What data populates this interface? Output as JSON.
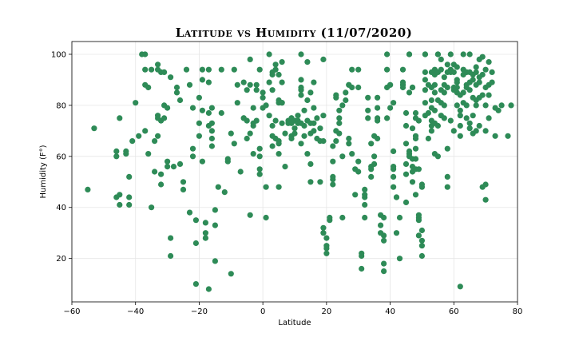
{
  "chart_data": {
    "type": "scatter",
    "title": "Latitude vs Humidity (11/07/2020)",
    "xlabel": "Latitude",
    "ylabel": "Humidity (F°)",
    "xlim": [
      -60,
      80
    ],
    "ylim": [
      3,
      105
    ],
    "xticks": [
      -60,
      -40,
      -20,
      0,
      20,
      40,
      60,
      80
    ],
    "yticks": [
      20,
      40,
      60,
      80,
      100
    ],
    "grid": true,
    "marker_color": "#2e8b57",
    "points": [
      [
        -55,
        47
      ],
      [
        -53,
        71
      ],
      [
        -46,
        60
      ],
      [
        -46,
        62
      ],
      [
        -45,
        75
      ],
      [
        -46,
        44
      ],
      [
        -45,
        45
      ],
      [
        -45,
        41
      ],
      [
        -43,
        62
      ],
      [
        -43,
        61
      ],
      [
        -42,
        44
      ],
      [
        -42,
        41
      ],
      [
        -42,
        52
      ],
      [
        -41,
        66
      ],
      [
        -40,
        81
      ],
      [
        -39,
        68
      ],
      [
        -38,
        100
      ],
      [
        -37,
        100
      ],
      [
        -37,
        94
      ],
      [
        -37,
        70
      ],
      [
        -37,
        88
      ],
      [
        -36,
        87
      ],
      [
        -36,
        61
      ],
      [
        -35,
        40
      ],
      [
        -35,
        94
      ],
      [
        -34,
        66
      ],
      [
        -34,
        54
      ],
      [
        -33,
        94
      ],
      [
        -33,
        96
      ],
      [
        -33,
        76
      ],
      [
        -33,
        75
      ],
      [
        -33,
        68
      ],
      [
        -32,
        74
      ],
      [
        -32,
        93
      ],
      [
        -32,
        53
      ],
      [
        -32,
        49
      ],
      [
        -31,
        93
      ],
      [
        -31,
        75
      ],
      [
        -31,
        80
      ],
      [
        -30,
        58
      ],
      [
        -30,
        56
      ],
      [
        -30,
        79
      ],
      [
        -29,
        91
      ],
      [
        -29,
        28
      ],
      [
        -29,
        21
      ],
      [
        -28,
        56
      ],
      [
        -27,
        85
      ],
      [
        -27,
        87
      ],
      [
        -26,
        82
      ],
      [
        -26,
        57
      ],
      [
        -25,
        50
      ],
      [
        -25,
        47
      ],
      [
        -24,
        94
      ],
      [
        -23,
        88
      ],
      [
        -23,
        38
      ],
      [
        -22,
        79
      ],
      [
        -22,
        63
      ],
      [
        -22,
        60
      ],
      [
        -21,
        10
      ],
      [
        -21,
        26
      ],
      [
        -21,
        35
      ],
      [
        -20,
        83
      ],
      [
        -20,
        73
      ],
      [
        -20,
        68
      ],
      [
        -19,
        94
      ],
      [
        -19,
        90
      ],
      [
        -19,
        78
      ],
      [
        -19,
        58
      ],
      [
        -18,
        30
      ],
      [
        -18,
        28
      ],
      [
        -18,
        34
      ],
      [
        -17,
        8
      ],
      [
        -17,
        94
      ],
      [
        -17,
        89
      ],
      [
        -17,
        72
      ],
      [
        -17,
        77
      ],
      [
        -16,
        70
      ],
      [
        -16,
        67
      ],
      [
        -16,
        64
      ],
      [
        -16,
        79
      ],
      [
        -16,
        73
      ],
      [
        -15,
        19
      ],
      [
        -15,
        33
      ],
      [
        -15,
        39
      ],
      [
        -14,
        48
      ],
      [
        -13,
        94
      ],
      [
        -13,
        77
      ],
      [
        -12,
        46
      ],
      [
        -11,
        58
      ],
      [
        -11,
        59
      ],
      [
        -10,
        14
      ],
      [
        -10,
        69
      ],
      [
        -9,
        65
      ],
      [
        -9,
        94
      ],
      [
        -8,
        88
      ],
      [
        -8,
        81
      ],
      [
        -7,
        54
      ],
      [
        -6,
        89
      ],
      [
        -6,
        75
      ],
      [
        -6,
        75
      ],
      [
        -5,
        67
      ],
      [
        -5,
        86
      ],
      [
        -5,
        74
      ],
      [
        -4,
        98
      ],
      [
        -4,
        88
      ],
      [
        -4,
        69
      ],
      [
        -4,
        37
      ],
      [
        -3,
        61
      ],
      [
        -3,
        72
      ],
      [
        -3,
        73
      ],
      [
        -3,
        79
      ],
      [
        -2,
        86
      ],
      [
        -2,
        88
      ],
      [
        -2,
        74
      ],
      [
        -1,
        94
      ],
      [
        -1,
        63
      ],
      [
        -1,
        60
      ],
      [
        -1,
        55
      ],
      [
        -1,
        53
      ],
      [
        0,
        85
      ],
      [
        0,
        83
      ],
      [
        0,
        79
      ],
      [
        1,
        80
      ],
      [
        1,
        48
      ],
      [
        1,
        36
      ],
      [
        2,
        100
      ],
      [
        2,
        89
      ],
      [
        2,
        76
      ],
      [
        3,
        92
      ],
      [
        3,
        93
      ],
      [
        3,
        86
      ],
      [
        3,
        72
      ],
      [
        3,
        64
      ],
      [
        3,
        68
      ],
      [
        4,
        96
      ],
      [
        4,
        94
      ],
      [
        4,
        74
      ],
      [
        4,
        67
      ],
      [
        5,
        81
      ],
      [
        5,
        82
      ],
      [
        5,
        92
      ],
      [
        5,
        61
      ],
      [
        5,
        65
      ],
      [
        5,
        66
      ],
      [
        5,
        48
      ],
      [
        6,
        97
      ],
      [
        6,
        89
      ],
      [
        6,
        81
      ],
      [
        6,
        81
      ],
      [
        6,
        73
      ],
      [
        7,
        69
      ],
      [
        7,
        56
      ],
      [
        8,
        73
      ],
      [
        8,
        74
      ],
      [
        9,
        75
      ],
      [
        9,
        68
      ],
      [
        9,
        73
      ],
      [
        9,
        67
      ],
      [
        9,
        75
      ],
      [
        10,
        69
      ],
      [
        10,
        74
      ],
      [
        10,
        71
      ],
      [
        11,
        76
      ],
      [
        11,
        73
      ],
      [
        11,
        74
      ],
      [
        12,
        86
      ],
      [
        12,
        84
      ],
      [
        12,
        100
      ],
      [
        12,
        87
      ],
      [
        12,
        90
      ],
      [
        12,
        73
      ],
      [
        12,
        65
      ],
      [
        13,
        78
      ],
      [
        13,
        72
      ],
      [
        13,
        68
      ],
      [
        14,
        97
      ],
      [
        14,
        74
      ],
      [
        14,
        82
      ],
      [
        14,
        61
      ],
      [
        15,
        57
      ],
      [
        15,
        50
      ],
      [
        15,
        69
      ],
      [
        15,
        85
      ],
      [
        15,
        73
      ],
      [
        16,
        89
      ],
      [
        16,
        79
      ],
      [
        16,
        70
      ],
      [
        16,
        73
      ],
      [
        17,
        67
      ],
      [
        17,
        75
      ],
      [
        18,
        71
      ],
      [
        18,
        66
      ],
      [
        18,
        50
      ],
      [
        19,
        98
      ],
      [
        19,
        76
      ],
      [
        19,
        66
      ],
      [
        19,
        32
      ],
      [
        19,
        30
      ],
      [
        20,
        28
      ],
      [
        20,
        25
      ],
      [
        20,
        24
      ],
      [
        20,
        22
      ],
      [
        21,
        35
      ],
      [
        21,
        36
      ],
      [
        22,
        51
      ],
      [
        22,
        52
      ],
      [
        22,
        49
      ],
      [
        22,
        58
      ],
      [
        22,
        64
      ],
      [
        23,
        66
      ],
      [
        23,
        83
      ],
      [
        23,
        84
      ],
      [
        23,
        70
      ],
      [
        24,
        75
      ],
      [
        24,
        69
      ],
      [
        24,
        73
      ],
      [
        24,
        78
      ],
      [
        25,
        80
      ],
      [
        25,
        60
      ],
      [
        25,
        36
      ],
      [
        26,
        82
      ],
      [
        26,
        85
      ],
      [
        27,
        88
      ],
      [
        27,
        88
      ],
      [
        27,
        65
      ],
      [
        27,
        67
      ],
      [
        28,
        94
      ],
      [
        28,
        87
      ],
      [
        28,
        61
      ],
      [
        29,
        45
      ],
      [
        29,
        55
      ],
      [
        30,
        94
      ],
      [
        30,
        87
      ],
      [
        30,
        58
      ],
      [
        30,
        54
      ],
      [
        31,
        16
      ],
      [
        31,
        21
      ],
      [
        31,
        22
      ],
      [
        32,
        41
      ],
      [
        32,
        44
      ],
      [
        32,
        45
      ],
      [
        32,
        47
      ],
      [
        32,
        36
      ],
      [
        33,
        75
      ],
      [
        33,
        78
      ],
      [
        33,
        83
      ],
      [
        34,
        55
      ],
      [
        34,
        52
      ],
      [
        34,
        56
      ],
      [
        34,
        65
      ],
      [
        35,
        68
      ],
      [
        35,
        60
      ],
      [
        35,
        57
      ],
      [
        36,
        83
      ],
      [
        36,
        75
      ],
      [
        36,
        79
      ],
      [
        36,
        74
      ],
      [
        36,
        67
      ],
      [
        37,
        30
      ],
      [
        37,
        33
      ],
      [
        37,
        37
      ],
      [
        38,
        36
      ],
      [
        38,
        29
      ],
      [
        38,
        27
      ],
      [
        38,
        18
      ],
      [
        38,
        15
      ],
      [
        39,
        75
      ],
      [
        39,
        87
      ],
      [
        39,
        94
      ],
      [
        39,
        100
      ],
      [
        40,
        88
      ],
      [
        40,
        88
      ],
      [
        40,
        79
      ],
      [
        41,
        81
      ],
      [
        41,
        62
      ],
      [
        41,
        55
      ],
      [
        41,
        48
      ],
      [
        41,
        52
      ],
      [
        41,
        56
      ],
      [
        42,
        44
      ],
      [
        42,
        30
      ],
      [
        42,
        44
      ],
      [
        43,
        36
      ],
      [
        43,
        20
      ],
      [
        44,
        88
      ],
      [
        44,
        88
      ],
      [
        44,
        94
      ],
      [
        44,
        89
      ],
      [
        44,
        87
      ],
      [
        45,
        77
      ],
      [
        45,
        65
      ],
      [
        45,
        57
      ],
      [
        45,
        72
      ],
      [
        45,
        53
      ],
      [
        45,
        42
      ],
      [
        46,
        62
      ],
      [
        46,
        60
      ],
      [
        46,
        61
      ],
      [
        46,
        85
      ],
      [
        46,
        100
      ],
      [
        46,
        100
      ],
      [
        47,
        54
      ],
      [
        47,
        87
      ],
      [
        47,
        87
      ],
      [
        47,
        71
      ],
      [
        47,
        59
      ],
      [
        47,
        56
      ],
      [
        47,
        50
      ],
      [
        48,
        45
      ],
      [
        48,
        59
      ],
      [
        48,
        55
      ],
      [
        48,
        63
      ],
      [
        48,
        67
      ],
      [
        48,
        68
      ],
      [
        48,
        75
      ],
      [
        48,
        77
      ],
      [
        49,
        36
      ],
      [
        49,
        35
      ],
      [
        49,
        29
      ],
      [
        49,
        37
      ],
      [
        49,
        55
      ],
      [
        49,
        74
      ],
      [
        50,
        21
      ],
      [
        50,
        25
      ],
      [
        50,
        27
      ],
      [
        50,
        31
      ],
      [
        50,
        48
      ],
      [
        50,
        49
      ],
      [
        51,
        76
      ],
      [
        51,
        81
      ],
      [
        51,
        86
      ],
      [
        51,
        90
      ],
      [
        51,
        93
      ],
      [
        51,
        100
      ],
      [
        51,
        100
      ],
      [
        52,
        88
      ],
      [
        52,
        77
      ],
      [
        52,
        67
      ],
      [
        53,
        70
      ],
      [
        53,
        72
      ],
      [
        53,
        74
      ],
      [
        53,
        79
      ],
      [
        53,
        82
      ],
      [
        53,
        93
      ],
      [
        53,
        87
      ],
      [
        54,
        94
      ],
      [
        54,
        92
      ],
      [
        54,
        88
      ],
      [
        54,
        85
      ],
      [
        54,
        78
      ],
      [
        54,
        73
      ],
      [
        54,
        61
      ],
      [
        55,
        100
      ],
      [
        55,
        100
      ],
      [
        55,
        93
      ],
      [
        55,
        82
      ],
      [
        55,
        72
      ],
      [
        55,
        60
      ],
      [
        56,
        98
      ],
      [
        56,
        81
      ],
      [
        56,
        86
      ],
      [
        56,
        94
      ],
      [
        56,
        76
      ],
      [
        57,
        88
      ],
      [
        57,
        91
      ],
      [
        57,
        85
      ],
      [
        57,
        80
      ],
      [
        57,
        75
      ],
      [
        58,
        96
      ],
      [
        58,
        87
      ],
      [
        58,
        93
      ],
      [
        58,
        63
      ],
      [
        58,
        52
      ],
      [
        58,
        48
      ],
      [
        59,
        100
      ],
      [
        59,
        94
      ],
      [
        59,
        93
      ],
      [
        59,
        74
      ],
      [
        60,
        96
      ],
      [
        60,
        93
      ],
      [
        60,
        87
      ],
      [
        60,
        86
      ],
      [
        60,
        70
      ],
      [
        61,
        95
      ],
      [
        61,
        90
      ],
      [
        61,
        89
      ],
      [
        61,
        87
      ],
      [
        61,
        85
      ],
      [
        61,
        80
      ],
      [
        62,
        84
      ],
      [
        62,
        78
      ],
      [
        62,
        76
      ],
      [
        62,
        72
      ],
      [
        62,
        68
      ],
      [
        62,
        9
      ],
      [
        63,
        100
      ],
      [
        63,
        94
      ],
      [
        63,
        92
      ],
      [
        63,
        85
      ],
      [
        63,
        81
      ],
      [
        64,
        93
      ],
      [
        64,
        88
      ],
      [
        64,
        87
      ],
      [
        64,
        80
      ],
      [
        64,
        75
      ],
      [
        65,
        100
      ],
      [
        65,
        93
      ],
      [
        65,
        89
      ],
      [
        65,
        86
      ],
      [
        65,
        73
      ],
      [
        65,
        71
      ],
      [
        66,
        92
      ],
      [
        66,
        90
      ],
      [
        66,
        83
      ],
      [
        66,
        76
      ],
      [
        66,
        69
      ],
      [
        67,
        95
      ],
      [
        67,
        93
      ],
      [
        67,
        88
      ],
      [
        67,
        82
      ],
      [
        67,
        80
      ],
      [
        67,
        70
      ],
      [
        68,
        98
      ],
      [
        68,
        91
      ],
      [
        68,
        89
      ],
      [
        68,
        83
      ],
      [
        68,
        72
      ],
      [
        69,
        99
      ],
      [
        69,
        92
      ],
      [
        69,
        84
      ],
      [
        69,
        48
      ],
      [
        70,
        94
      ],
      [
        70,
        87
      ],
      [
        70,
        80
      ],
      [
        70,
        70
      ],
      [
        70,
        49
      ],
      [
        70,
        43
      ],
      [
        71,
        97
      ],
      [
        71,
        88
      ],
      [
        71,
        84
      ],
      [
        71,
        75
      ],
      [
        72,
        93
      ],
      [
        72,
        89
      ],
      [
        73,
        79
      ],
      [
        73,
        68
      ],
      [
        74,
        78
      ],
      [
        75,
        80
      ],
      [
        77,
        68
      ],
      [
        78,
        80
      ]
    ]
  }
}
